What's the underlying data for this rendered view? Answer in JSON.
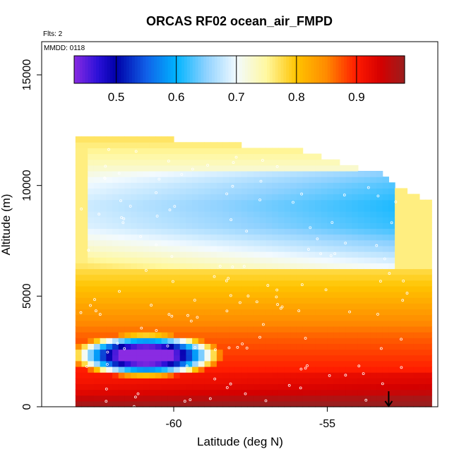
{
  "chart_data": {
    "type": "heatmap",
    "title": "ORCAS RF02 ocean_air_FMPD",
    "xlabel": "Latitude (deg N)",
    "ylabel": "Altitude (m)",
    "xlim": [
      -64.3,
      -51.4
    ],
    "ylim": [
      0,
      16500
    ],
    "x_ticks": [
      -60,
      -55
    ],
    "x_tick_labels": [
      "-60",
      "-55"
    ],
    "y_ticks": [
      0,
      5000,
      10000,
      15000
    ],
    "y_tick_labels": [
      "0",
      "5000",
      "10000",
      "15000"
    ],
    "notes": [
      "Flts: 2",
      "MMDD: 0118"
    ],
    "colorbar": {
      "range": [
        0.43,
        0.98
      ],
      "ticks": [
        0.5,
        0.6,
        0.7,
        0.8,
        0.9
      ],
      "tick_labels": [
        "0.5",
        "0.6",
        "0.7",
        "0.8",
        "0.9"
      ],
      "palette": [
        {
          "v": 0.43,
          "c": "#8a2be2"
        },
        {
          "v": 0.47,
          "c": "#2a10d8"
        },
        {
          "v": 0.5,
          "c": "#0000a8"
        },
        {
          "v": 0.55,
          "c": "#1060e8"
        },
        {
          "v": 0.6,
          "c": "#00b4ff"
        },
        {
          "v": 0.65,
          "c": "#90d2ff"
        },
        {
          "v": 0.7,
          "c": "#f2faff"
        },
        {
          "v": 0.75,
          "c": "#fff8a0"
        },
        {
          "v": 0.8,
          "c": "#ffc400"
        },
        {
          "v": 0.85,
          "c": "#ff8a00"
        },
        {
          "v": 0.9,
          "c": "#ff1a00"
        },
        {
          "v": 0.94,
          "c": "#d40000"
        },
        {
          "v": 0.98,
          "c": "#9b1e1e"
        }
      ]
    },
    "lat_columns": [
      {
        "lat": -63.1,
        "top": 12200
      },
      {
        "lat": -62.5,
        "top": 12100
      },
      {
        "lat": -61.5,
        "top": 12100
      },
      {
        "lat": -60.5,
        "top": 12000
      },
      {
        "lat": -59.5,
        "top": 11900
      },
      {
        "lat": -58.5,
        "top": 11900
      },
      {
        "lat": -57.5,
        "top": 11600
      },
      {
        "lat": -56.5,
        "top": 11600
      },
      {
        "lat": -55.5,
        "top": 11300
      },
      {
        "lat": -54.5,
        "top": 10800
      },
      {
        "lat": -53.5,
        "top": 10500
      },
      {
        "lat": -52.5,
        "top": 9600
      },
      {
        "lat": -51.8,
        "top": 9150
      }
    ],
    "field_profile": [
      {
        "alt": 0,
        "v": 0.97
      },
      {
        "alt": 500,
        "v": 0.93
      },
      {
        "alt": 1000,
        "v": 0.91
      },
      {
        "alt": 2000,
        "v": 0.89
      },
      {
        "alt": 3000,
        "v": 0.87
      },
      {
        "alt": 4000,
        "v": 0.84
      },
      {
        "alt": 5000,
        "v": 0.81
      },
      {
        "alt": 6000,
        "v": 0.78
      },
      {
        "alt": 7000,
        "v": 0.73
      },
      {
        "alt": 8000,
        "v": 0.69
      },
      {
        "alt": 9000,
        "v": 0.68
      },
      {
        "alt": 10000,
        "v": 0.7
      },
      {
        "alt": 11000,
        "v": 0.74
      },
      {
        "alt": 12000,
        "v": 0.77
      }
    ],
    "anomaly_low_blue": {
      "lat_range": [
        -63.5,
        -58.5
      ],
      "alt_range": [
        1200,
        3200
      ],
      "min_value": 0.45
    },
    "marker_arrow": {
      "lat": -53.0,
      "alt": 700
    }
  }
}
